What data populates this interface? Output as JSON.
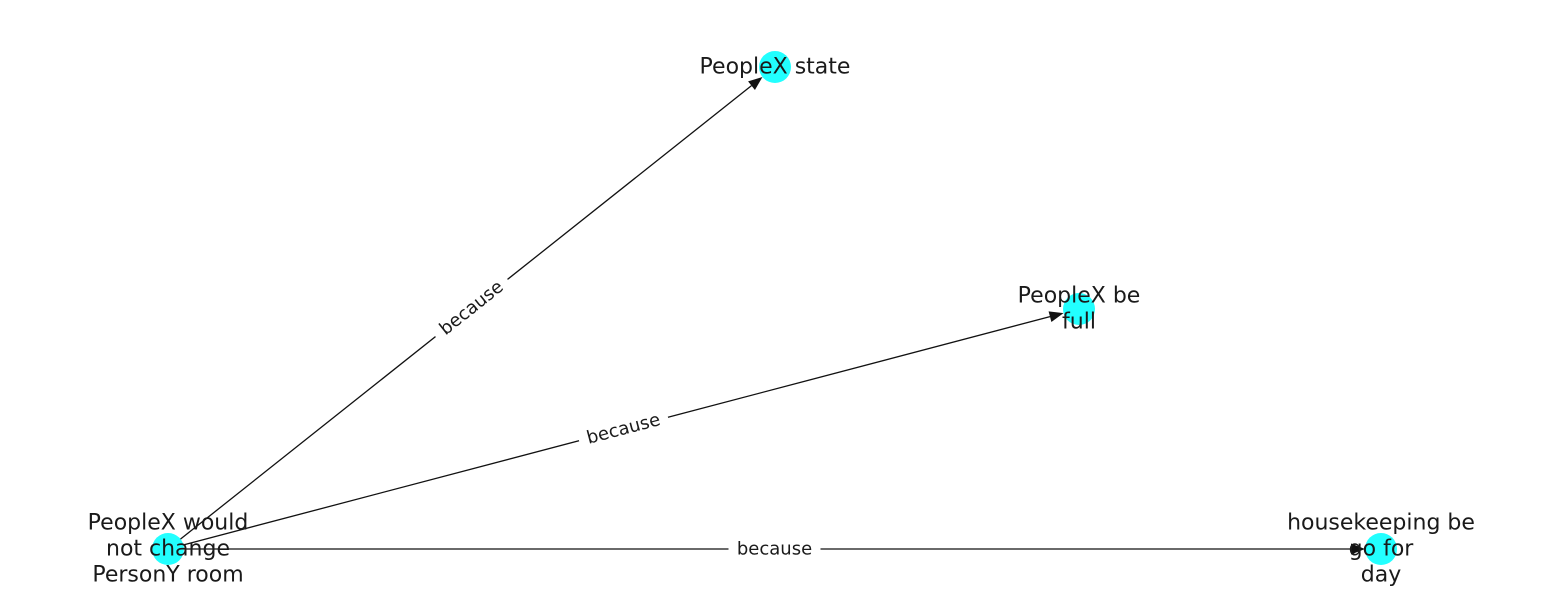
{
  "colors": {
    "node_fill": "#22ffff",
    "edge": "#111111",
    "text": "#1a1a1a"
  },
  "nodes": [
    {
      "id": "n_src",
      "lines": [
        "PeopleX would",
        "not change",
        "PersonY room"
      ]
    },
    {
      "id": "n_state",
      "lines": [
        "PeopleX state"
      ]
    },
    {
      "id": "n_full",
      "lines": [
        "PeopleX be",
        "full"
      ]
    },
    {
      "id": "n_house",
      "lines": [
        "housekeeping be",
        "go for",
        "day"
      ]
    }
  ],
  "edges": [
    {
      "from": "n_src",
      "to": "n_state",
      "label": "because"
    },
    {
      "from": "n_src",
      "to": "n_full",
      "label": "because"
    },
    {
      "from": "n_src",
      "to": "n_house",
      "label": "because"
    }
  ]
}
